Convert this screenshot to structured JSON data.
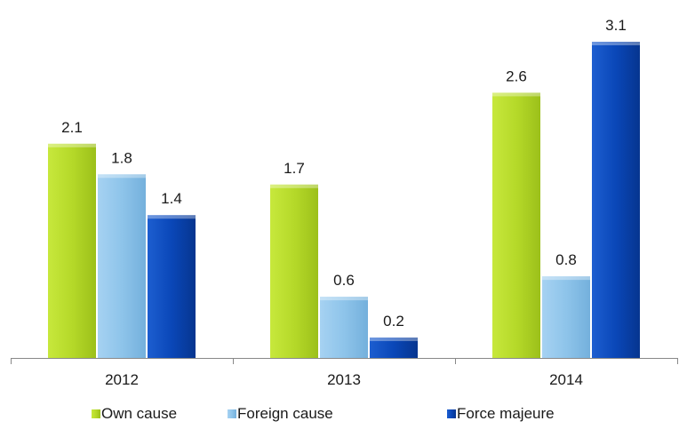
{
  "chart_data": {
    "type": "bar",
    "categories": [
      "2012",
      "2013",
      "2014"
    ],
    "series": [
      {
        "name": "Own cause",
        "values": [
          2.1,
          1.7,
          2.6
        ],
        "color": "#b5d929"
      },
      {
        "name": "Foreign cause",
        "values": [
          1.8,
          0.6,
          0.8
        ],
        "color": "#8ec4ea"
      },
      {
        "name": "Force majeure",
        "values": [
          1.4,
          0.2,
          3.1
        ],
        "color": "#0a47b8"
      }
    ],
    "ylim": [
      0,
      3.1
    ],
    "grid": false,
    "legend_position": "bottom",
    "show_data_labels": true
  }
}
